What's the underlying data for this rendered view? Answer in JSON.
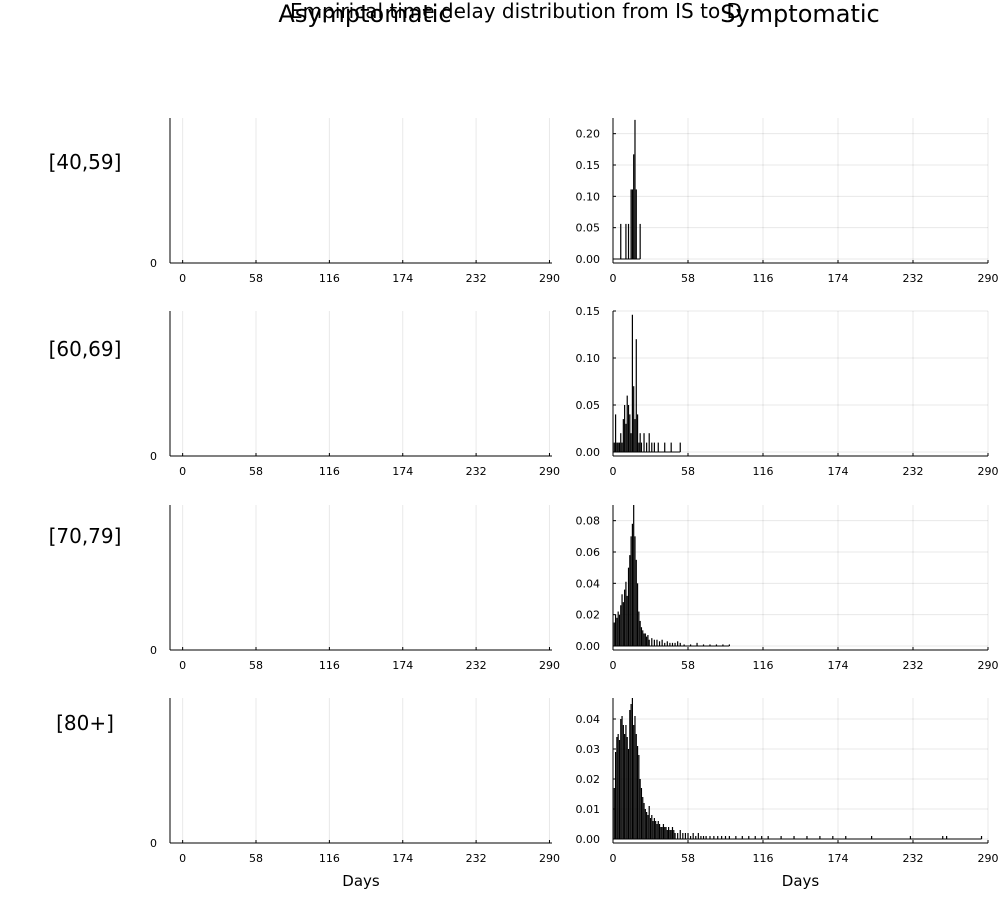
{
  "figure": {
    "suptitle": "Empirical time delay distribution from IS to D",
    "column_titles": [
      "Asymptomatic",
      "Symptomatic"
    ],
    "row_labels": [
      "[40,59]",
      "[60,69]",
      "[70,79]",
      "[80+]"
    ],
    "xlabel": "Days"
  },
  "chart_data": [
    {
      "type": "bar",
      "row": "[40,59]",
      "column": "Asymptomatic",
      "xlabel": "",
      "xlim": [
        -10,
        292
      ],
      "xticks": [
        0,
        58,
        116,
        174,
        232,
        290
      ],
      "yticks": [
        0
      ],
      "grid": true,
      "x": [],
      "values": []
    },
    {
      "type": "bar",
      "row": "[40,59]",
      "column": "Symptomatic",
      "xlabel": "",
      "xlim": [
        0,
        290
      ],
      "ylim": [
        0,
        0.225
      ],
      "xticks": [
        0,
        58,
        116,
        174,
        232,
        290
      ],
      "yticks": [
        0,
        0.05,
        0.1,
        0.15,
        0.2
      ],
      "grid": true,
      "x": [
        6,
        10,
        12,
        14,
        15,
        16,
        17,
        18,
        21
      ],
      "values": [
        0.056,
        0.056,
        0.056,
        0.111,
        0.111,
        0.167,
        0.222,
        0.111,
        0.056
      ]
    },
    {
      "type": "bar",
      "row": "[60,69]",
      "column": "Asymptomatic",
      "xlabel": "",
      "xlim": [
        -10,
        292
      ],
      "xticks": [
        0,
        58,
        116,
        174,
        232,
        290
      ],
      "yticks": [
        0
      ],
      "grid": true,
      "x": [],
      "values": []
    },
    {
      "type": "bar",
      "row": "[60,69]",
      "column": "Symptomatic",
      "xlabel": "",
      "xlim": [
        0,
        290
      ],
      "ylim": [
        0,
        0.15
      ],
      "xticks": [
        0,
        58,
        116,
        174,
        232,
        290
      ],
      "yticks": [
        0,
        0.05,
        0.1,
        0.15
      ],
      "grid": true,
      "x": [
        1,
        2,
        3,
        4,
        5,
        6,
        7,
        8,
        9,
        10,
        11,
        12,
        13,
        14,
        15,
        16,
        17,
        18,
        19,
        20,
        21,
        22,
        24,
        26,
        28,
        30,
        32,
        35,
        40,
        45,
        52
      ],
      "values": [
        0.01,
        0.04,
        0.01,
        0.01,
        0.01,
        0.02,
        0.01,
        0.035,
        0.05,
        0.03,
        0.06,
        0.05,
        0.04,
        0.02,
        0.146,
        0.07,
        0.035,
        0.12,
        0.04,
        0.01,
        0.02,
        0.01,
        0.02,
        0.01,
        0.02,
        0.01,
        0.01,
        0.01,
        0.01,
        0.01,
        0.01
      ]
    },
    {
      "type": "bar",
      "row": "[70,79]",
      "column": "Asymptomatic",
      "xlabel": "",
      "xlim": [
        -10,
        292
      ],
      "xticks": [
        0,
        58,
        116,
        174,
        232,
        290
      ],
      "yticks": [
        0
      ],
      "grid": true,
      "x": [],
      "values": []
    },
    {
      "type": "bar",
      "row": "[70,79]",
      "column": "Symptomatic",
      "xlabel": "",
      "xlim": [
        0,
        290
      ],
      "ylim": [
        0,
        0.09
      ],
      "xticks": [
        0,
        58,
        116,
        174,
        232,
        290
      ],
      "yticks": [
        0,
        0.02,
        0.04,
        0.06,
        0.08
      ],
      "grid": true,
      "x": [
        1,
        2,
        3,
        4,
        5,
        6,
        7,
        8,
        9,
        10,
        11,
        12,
        13,
        14,
        15,
        16,
        17,
        18,
        19,
        20,
        21,
        22,
        23,
        24,
        25,
        26,
        27,
        28,
        30,
        32,
        34,
        36,
        38,
        40,
        42,
        44,
        46,
        48,
        50,
        52,
        55,
        60,
        65,
        70,
        75,
        80,
        85,
        90
      ],
      "values": [
        0.015,
        0.02,
        0.018,
        0.022,
        0.02,
        0.026,
        0.033,
        0.028,
        0.036,
        0.041,
        0.032,
        0.05,
        0.058,
        0.07,
        0.078,
        0.09,
        0.07,
        0.055,
        0.04,
        0.022,
        0.016,
        0.012,
        0.01,
        0.008,
        0.008,
        0.006,
        0.007,
        0.004,
        0.005,
        0.004,
        0.004,
        0.003,
        0.004,
        0.002,
        0.003,
        0.002,
        0.002,
        0.002,
        0.003,
        0.002,
        0.001,
        0.001,
        0.002,
        0.001,
        0.001,
        0.001,
        0.001,
        0.001
      ]
    },
    {
      "type": "bar",
      "row": "[80+]",
      "column": "Asymptomatic",
      "xlabel": "Days",
      "xlim": [
        -10,
        292
      ],
      "xticks": [
        0,
        58,
        116,
        174,
        232,
        290
      ],
      "yticks": [
        0
      ],
      "grid": true,
      "x": [],
      "values": []
    },
    {
      "type": "bar",
      "row": "[80+]",
      "column": "Symptomatic",
      "xlabel": "Days",
      "xlim": [
        0,
        290
      ],
      "ylim": [
        0,
        0.047
      ],
      "xticks": [
        0,
        58,
        116,
        174,
        232,
        290
      ],
      "yticks": [
        0,
        0.01,
        0.02,
        0.03,
        0.04
      ],
      "grid": true,
      "x": [
        1,
        2,
        3,
        4,
        5,
        6,
        7,
        8,
        9,
        10,
        11,
        12,
        13,
        14,
        15,
        16,
        17,
        18,
        19,
        20,
        21,
        22,
        23,
        24,
        25,
        26,
        27,
        28,
        29,
        30,
        31,
        32,
        33,
        34,
        35,
        36,
        37,
        38,
        39,
        40,
        41,
        42,
        43,
        44,
        45,
        46,
        47,
        48,
        50,
        52,
        54,
        56,
        58,
        60,
        62,
        64,
        66,
        68,
        70,
        72,
        75,
        78,
        81,
        84,
        87,
        90,
        95,
        100,
        105,
        110,
        115,
        120,
        130,
        140,
        150,
        160,
        170,
        180,
        200,
        230,
        255,
        258,
        285
      ],
      "values": [
        0.017,
        0.029,
        0.034,
        0.035,
        0.033,
        0.04,
        0.041,
        0.038,
        0.035,
        0.038,
        0.034,
        0.03,
        0.043,
        0.045,
        0.047,
        0.038,
        0.041,
        0.035,
        0.031,
        0.028,
        0.02,
        0.017,
        0.014,
        0.012,
        0.01,
        0.009,
        0.008,
        0.011,
        0.007,
        0.008,
        0.006,
        0.007,
        0.006,
        0.005,
        0.006,
        0.005,
        0.004,
        0.004,
        0.005,
        0.004,
        0.004,
        0.003,
        0.004,
        0.003,
        0.003,
        0.004,
        0.003,
        0.002,
        0.002,
        0.003,
        0.002,
        0.002,
        0.002,
        0.001,
        0.002,
        0.001,
        0.002,
        0.001,
        0.001,
        0.001,
        0.001,
        0.001,
        0.001,
        0.001,
        0.001,
        0.001,
        0.001,
        0.001,
        0.001,
        0.001,
        0.001,
        0.001,
        0.001,
        0.001,
        0.001,
        0.001,
        0.001,
        0.001,
        0.001,
        0.001,
        0.001,
        0.001,
        0.001
      ]
    }
  ]
}
